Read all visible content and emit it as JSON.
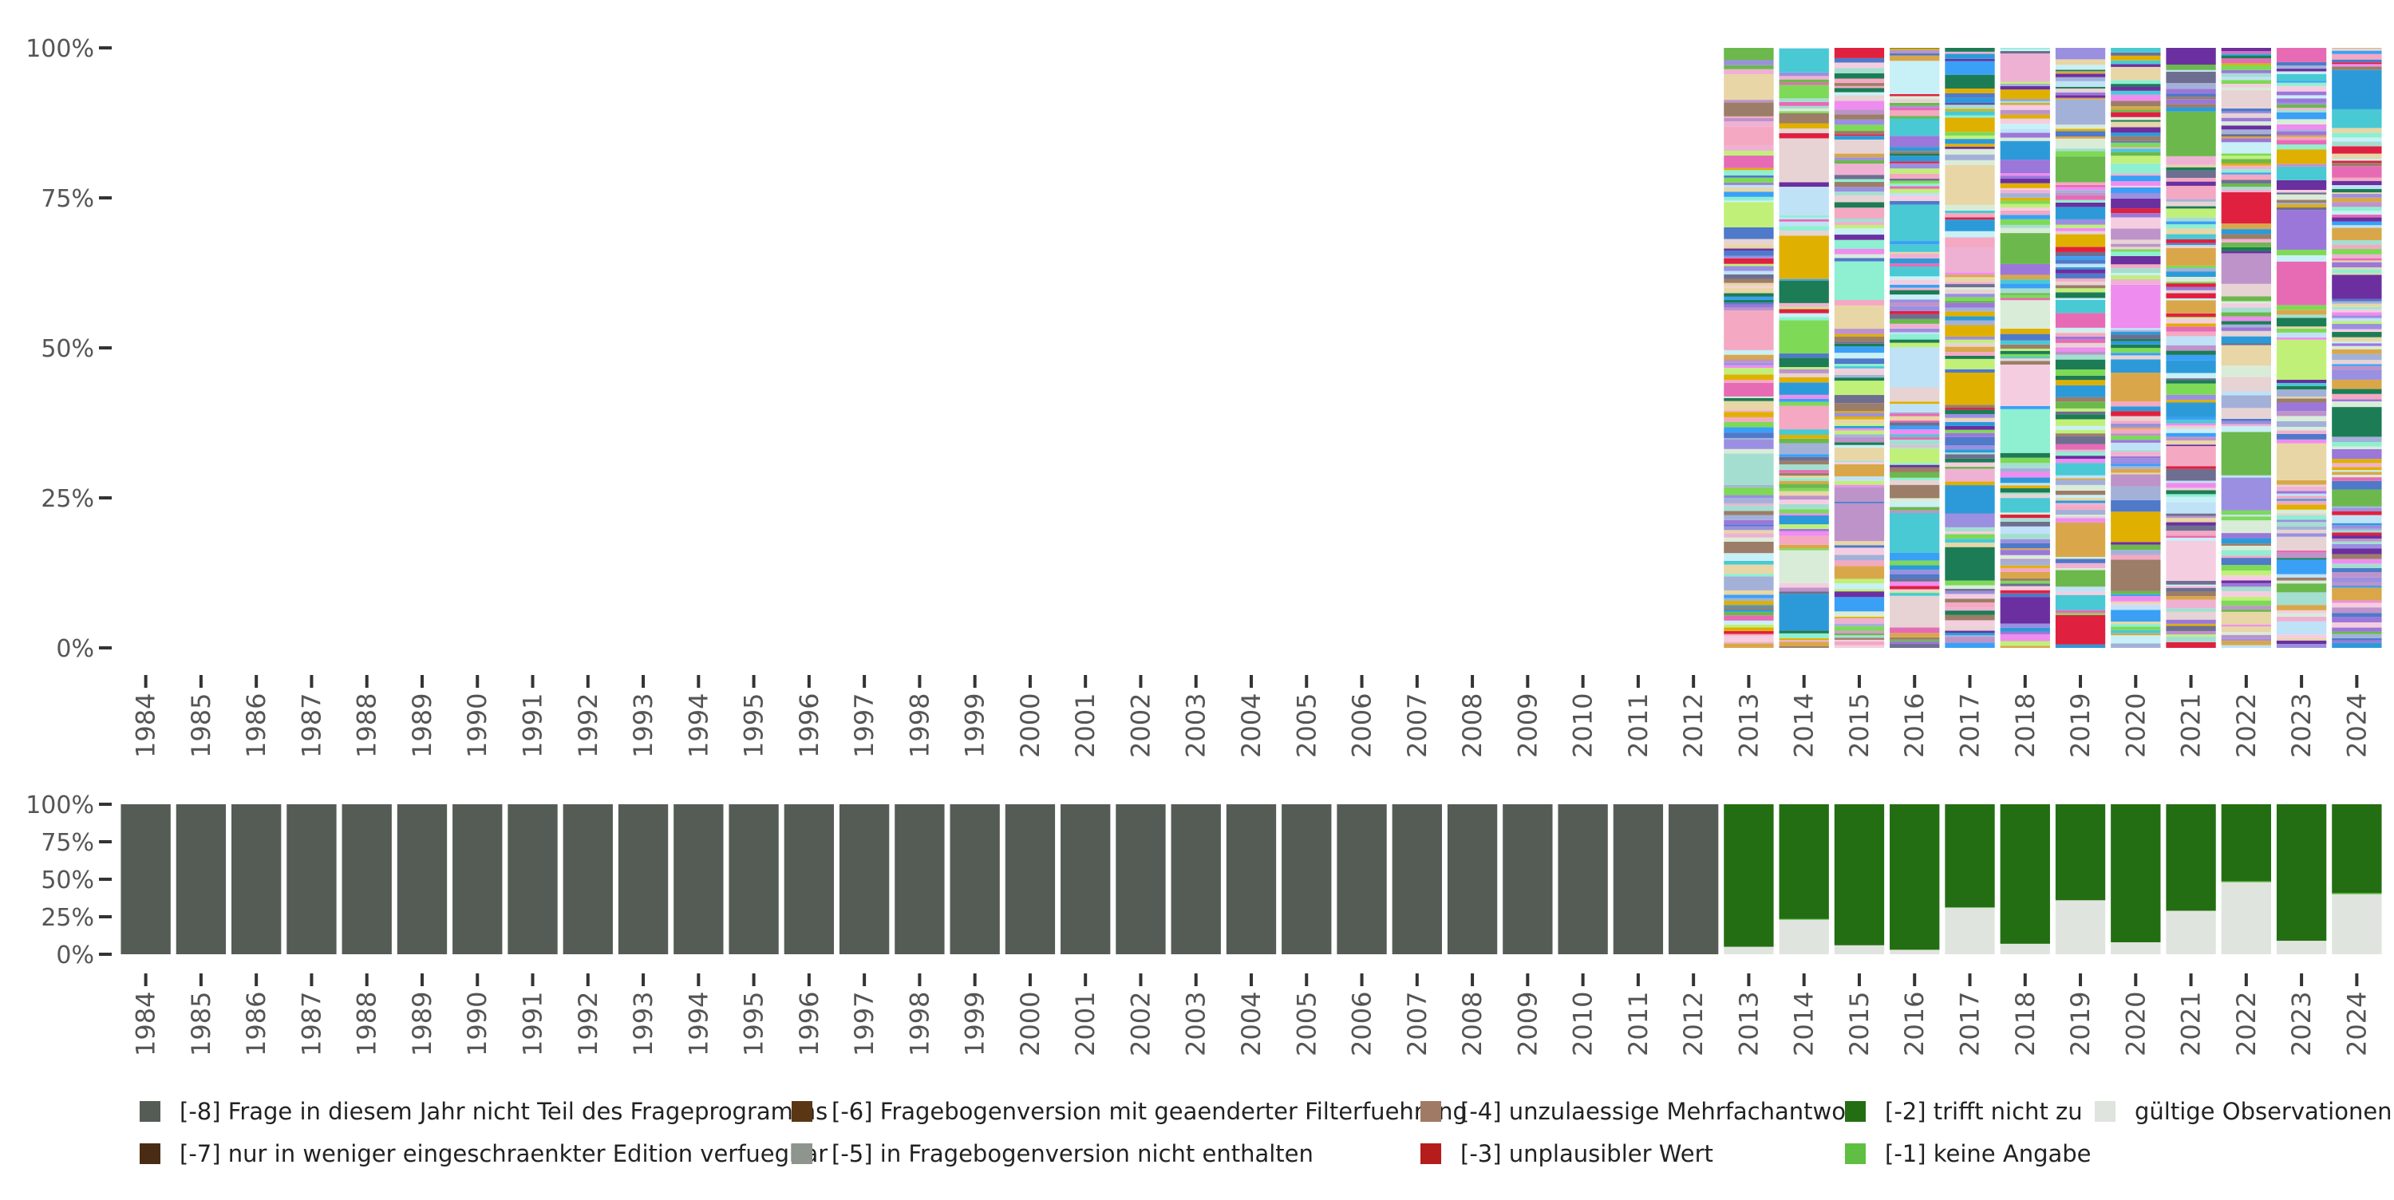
{
  "chart_data": [
    {
      "type": "bar",
      "stacked": true,
      "subtype": "stacked-percent",
      "note": "Upper panel: distribution of many valid answer categories (gültige Observationen), shown only for years with data.",
      "categories": [
        "1984",
        "1985",
        "1986",
        "1987",
        "1988",
        "1989",
        "1990",
        "1991",
        "1992",
        "1993",
        "1994",
        "1995",
        "1996",
        "1997",
        "1998",
        "1999",
        "2000",
        "2001",
        "2002",
        "2003",
        "2004",
        "2005",
        "2006",
        "2007",
        "2008",
        "2009",
        "2010",
        "2011",
        "2012",
        "2013",
        "2014",
        "2015",
        "2016",
        "2017",
        "2018",
        "2019",
        "2020",
        "2021",
        "2022",
        "2023",
        "2024"
      ],
      "years_with_data": [
        "2013",
        "2014",
        "2015",
        "2016",
        "2017",
        "2018",
        "2019",
        "2020",
        "2021",
        "2022",
        "2023",
        "2024"
      ],
      "y_ticks": [
        "0%",
        "25%",
        "50%",
        "75%",
        "100%"
      ],
      "ylim": [
        0,
        100
      ],
      "stack_palette": [
        "#9b77d9",
        "#e66bb4",
        "#48c9d4",
        "#bd93c9",
        "#f5cde0",
        "#a3b1d9",
        "#7ed957",
        "#c0f078",
        "#e8d6a6",
        "#1c7c55",
        "#6e6e91",
        "#e0203f",
        "#e7d3d3",
        "#d9ecd8",
        "#c8f0f7",
        "#8eefd1",
        "#3aa0f6",
        "#bfe2f7",
        "#a4ded0",
        "#efb1d3",
        "#6cb84d",
        "#ef8cef",
        "#d9a74a",
        "#9a8fe0",
        "#4f79c9",
        "#6b2fa0",
        "#f4a8c2",
        "#dfb000",
        "#9c7d67",
        "#2c9ad9"
      ]
    },
    {
      "type": "bar",
      "stacked": true,
      "subtype": "stacked-percent",
      "categories": [
        "1984",
        "1985",
        "1986",
        "1987",
        "1988",
        "1989",
        "1990",
        "1991",
        "1992",
        "1993",
        "1994",
        "1995",
        "1996",
        "1997",
        "1998",
        "1999",
        "2000",
        "2001",
        "2002",
        "2003",
        "2004",
        "2005",
        "2006",
        "2007",
        "2008",
        "2009",
        "2010",
        "2011",
        "2012",
        "2013",
        "2014",
        "2015",
        "2016",
        "2017",
        "2018",
        "2019",
        "2020",
        "2021",
        "2022",
        "2023",
        "2024"
      ],
      "y_ticks": [
        "0%",
        "25%",
        "50%",
        "75%",
        "100%"
      ],
      "ylim": [
        0,
        100
      ],
      "series": [
        {
          "name": "gültige Observationen",
          "color": "#e0e4de",
          "values": [
            0,
            0,
            0,
            0,
            0,
            0,
            0,
            0,
            0,
            0,
            0,
            0,
            0,
            0,
            0,
            0,
            0,
            0,
            0,
            0,
            0,
            0,
            0,
            0,
            0,
            0,
            0,
            0,
            0,
            5,
            23,
            6,
            3,
            31,
            7,
            36,
            8,
            29,
            48,
            9,
            40
          ]
        },
        {
          "name": "[-1] keine Angabe",
          "color": "#5fbf43",
          "values": [
            0,
            0,
            0,
            0,
            0,
            0,
            0,
            0,
            0,
            0,
            0,
            0,
            0,
            0,
            0,
            0,
            0,
            0,
            0,
            0,
            0,
            0,
            0,
            0,
            0,
            0,
            0,
            0,
            0,
            0,
            0.5,
            0,
            0,
            0.3,
            0,
            0,
            0,
            0,
            0.7,
            0,
            0.8
          ]
        },
        {
          "name": "[-2] trifft nicht zu",
          "color": "#236e12",
          "values": [
            0,
            0,
            0,
            0,
            0,
            0,
            0,
            0,
            0,
            0,
            0,
            0,
            0,
            0,
            0,
            0,
            0,
            0,
            0,
            0,
            0,
            0,
            0,
            0,
            0,
            0,
            0,
            0,
            0,
            95,
            76.5,
            94,
            97,
            68.7,
            93,
            64,
            92,
            71,
            51.3,
            91,
            59.2
          ]
        },
        {
          "name": "[-8] Frage in diesem Jahr nicht Teil des Frageprogramms",
          "color": "#555c55",
          "values": [
            100,
            100,
            100,
            100,
            100,
            100,
            100,
            100,
            100,
            100,
            100,
            100,
            100,
            100,
            100,
            100,
            100,
            100,
            100,
            100,
            100,
            100,
            100,
            100,
            100,
            100,
            100,
            100,
            100,
            0,
            0,
            0,
            0,
            0,
            0,
            0,
            0,
            0,
            0,
            0,
            0
          ]
        }
      ]
    }
  ],
  "legend": {
    "items": [
      {
        "label": "[-8] Frage in diesem Jahr nicht Teil des Frageprogramms",
        "color": "#555c55"
      },
      {
        "label": "[-7] nur in weniger eingeschraenkter Edition verfuegbar",
        "color": "#4a2c14"
      },
      {
        "label": "[-6] Fragebogenversion mit geaenderter Filterfuehrung",
        "color": "#5a3615"
      },
      {
        "label": "[-5] in Fragebogenversion nicht enthalten",
        "color": "#8e948e"
      },
      {
        "label": "[-4] unzulaessige Mehrfachantwort",
        "color": "#a07a64"
      },
      {
        "label": "[-3] unplausibler Wert",
        "color": "#b51c1c"
      },
      {
        "label": "[-2] trifft nicht zu",
        "color": "#236e12"
      },
      {
        "label": "[-1] keine Angabe",
        "color": "#5fbf43"
      },
      {
        "label": "gültige Observationen",
        "color": "#e0e4de"
      }
    ]
  }
}
